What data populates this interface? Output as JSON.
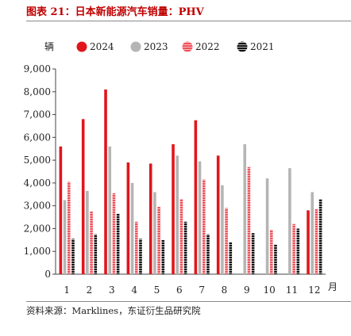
{
  "figure": {
    "title": "图表 21：日本新能源汽车销量：PHV",
    "source": "资料来源：Marklines，东证衍生品研究院"
  },
  "chart_data": {
    "type": "bar",
    "title": "",
    "ylabel": "辆",
    "xlabel": "月",
    "ylim": [
      0,
      9000
    ],
    "yticks": [
      "0",
      "1,000",
      "2,000",
      "3,000",
      "4,000",
      "5,000",
      "6,000",
      "7,000",
      "8,000",
      "9,000"
    ],
    "categories": [
      "1",
      "2",
      "3",
      "4",
      "5",
      "6",
      "7",
      "8",
      "9",
      "10",
      "11",
      "12"
    ],
    "legend_position": "top",
    "grid": false,
    "series": [
      {
        "name": "2024",
        "color": "#e0161c",
        "pattern": "solid",
        "values": [
          5600,
          6800,
          8100,
          4900,
          4850,
          5700,
          6750,
          5200,
          null,
          null,
          null,
          2800
        ]
      },
      {
        "name": "2023",
        "color": "#b5b5b5",
        "pattern": "solid",
        "values": [
          3250,
          3650,
          5600,
          4000,
          3600,
          5200,
          4950,
          3900,
          5700,
          4200,
          4650,
          3600
        ]
      },
      {
        "name": "2022",
        "color": "#f0535c",
        "pattern": "stripes",
        "values": [
          4050,
          2750,
          3550,
          2300,
          2950,
          3300,
          4150,
          2900,
          4700,
          1950,
          2200,
          2850
        ]
      },
      {
        "name": "2021",
        "color": "#111111",
        "pattern": "stripes",
        "values": [
          1550,
          1750,
          2650,
          1550,
          1500,
          2300,
          1750,
          1400,
          1800,
          1300,
          2000,
          3300
        ]
      }
    ]
  }
}
